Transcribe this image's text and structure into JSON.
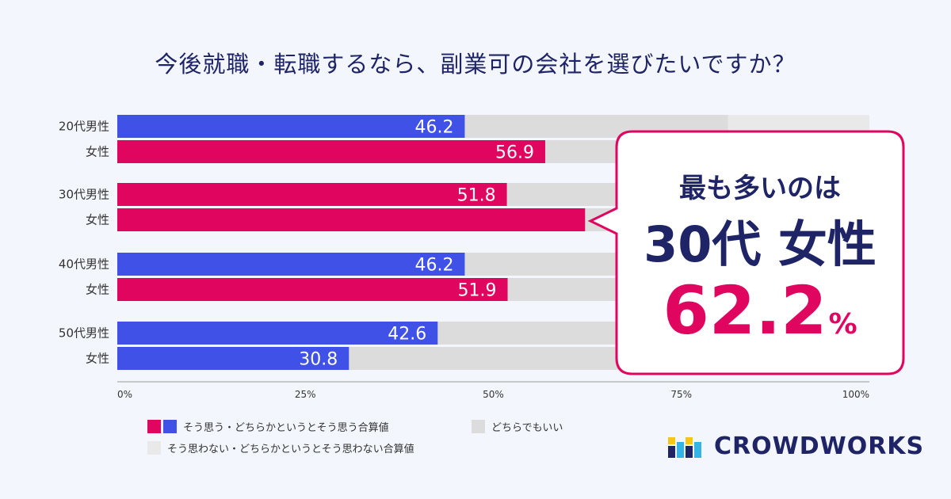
{
  "title": "今後就職・転職するなら、副業可の会社を選びたいですか？",
  "colors": {
    "male": "#3f51e6",
    "female": "#e0065f",
    "neutral": "#dcdcdc",
    "negative": "#e9e9e9",
    "title": "#1e2466"
  },
  "callout": {
    "title": "最も多いのは",
    "group": "30代 女性",
    "value": "62.2",
    "unit": "%"
  },
  "legend": {
    "agree": "そう思う・どちらかというとそう思う合算値",
    "neutral": "どちらでもいい",
    "disagree": "そう思わない・どちらかというとそう思わない合算値"
  },
  "logo": {
    "text": "CROWDWORKS"
  },
  "chart_data": {
    "type": "bar",
    "orientation": "horizontal",
    "stacked": true,
    "title": "今後就職・転職するなら、副業可の会社を選びたいですか？",
    "categories": [
      "20代男性",
      "女性",
      "30代男性",
      "女性",
      "40代男性",
      "女性",
      "50代男性",
      "女性"
    ],
    "xlim": [
      0,
      100
    ],
    "ticks": [
      "0%",
      "25%",
      "50%",
      "75%",
      "100%"
    ],
    "series": [
      {
        "name": "そう思う・どちらかというとそう思う合算値",
        "values": [
          46.2,
          56.9,
          51.8,
          62.2,
          46.2,
          51.9,
          42.6,
          30.8
        ]
      },
      {
        "name": "どちらでもいい",
        "values": [
          35.0,
          null,
          null,
          null,
          null,
          null,
          null,
          null
        ]
      },
      {
        "name": "そう思わない・どちらかというとそう思わない合算値",
        "values": [
          18.8,
          null,
          null,
          null,
          null,
          null,
          null,
          null
        ]
      }
    ],
    "bar_colors": [
      "male",
      "female",
      "female",
      "female",
      "male",
      "female",
      "male",
      "male"
    ],
    "labels": [
      "46.2",
      "56.9",
      "51.8",
      "",
      "46.2",
      "51.9",
      "42.6",
      "30.8"
    ]
  }
}
